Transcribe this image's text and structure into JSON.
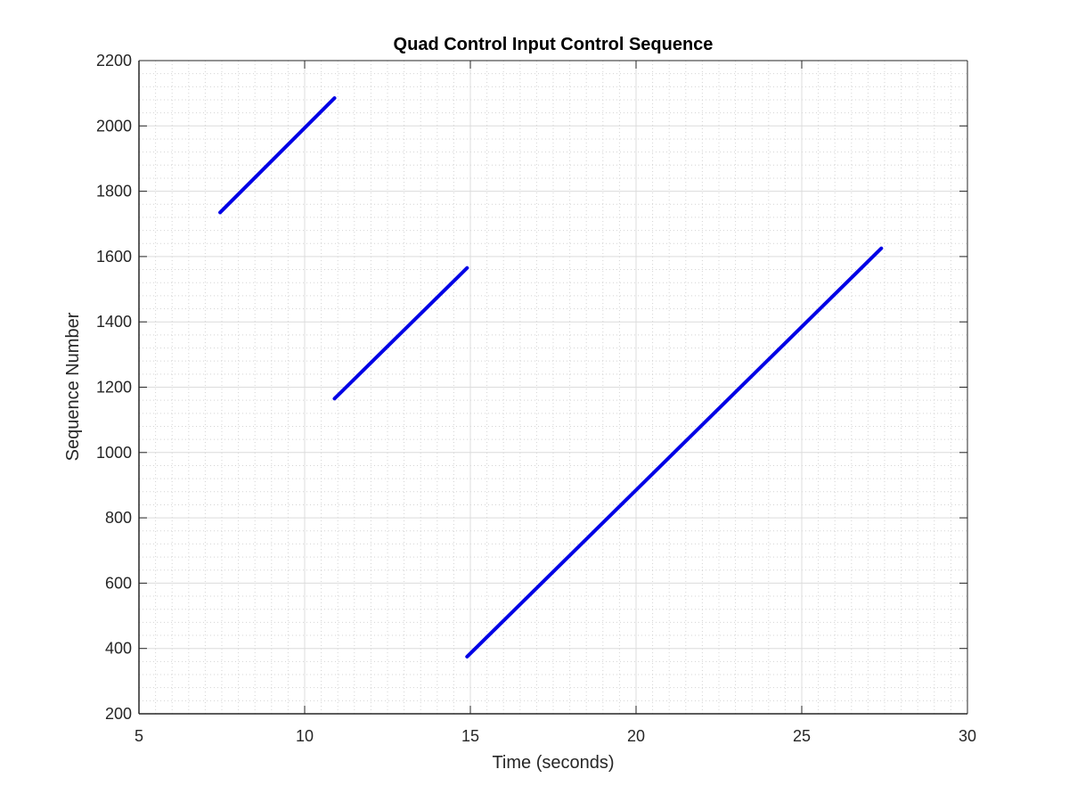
{
  "chart_data": {
    "type": "line",
    "title": "Quad Control Input Control Sequence",
    "xlabel": "Time (seconds)",
    "ylabel": "Sequence Number",
    "xlim": [
      5,
      30
    ],
    "ylim": [
      200,
      2200
    ],
    "xticks": [
      5,
      10,
      15,
      20,
      25,
      30
    ],
    "yticks": [
      200,
      400,
      600,
      800,
      1000,
      1200,
      1400,
      1600,
      1800,
      2000,
      2200
    ],
    "x_minor_step": 0.5,
    "y_minor_step": 40,
    "grid": true,
    "minor_grid": true,
    "legend": "none",
    "line_color": "#0000e6",
    "series": [
      {
        "x": [
          7.45,
          10.9
        ],
        "y": [
          1735,
          2085
        ]
      },
      {
        "x": [
          10.9,
          14.9
        ],
        "y": [
          1165,
          1565
        ]
      },
      {
        "x": [
          14.9,
          27.4
        ],
        "y": [
          375,
          1625
        ]
      }
    ]
  }
}
